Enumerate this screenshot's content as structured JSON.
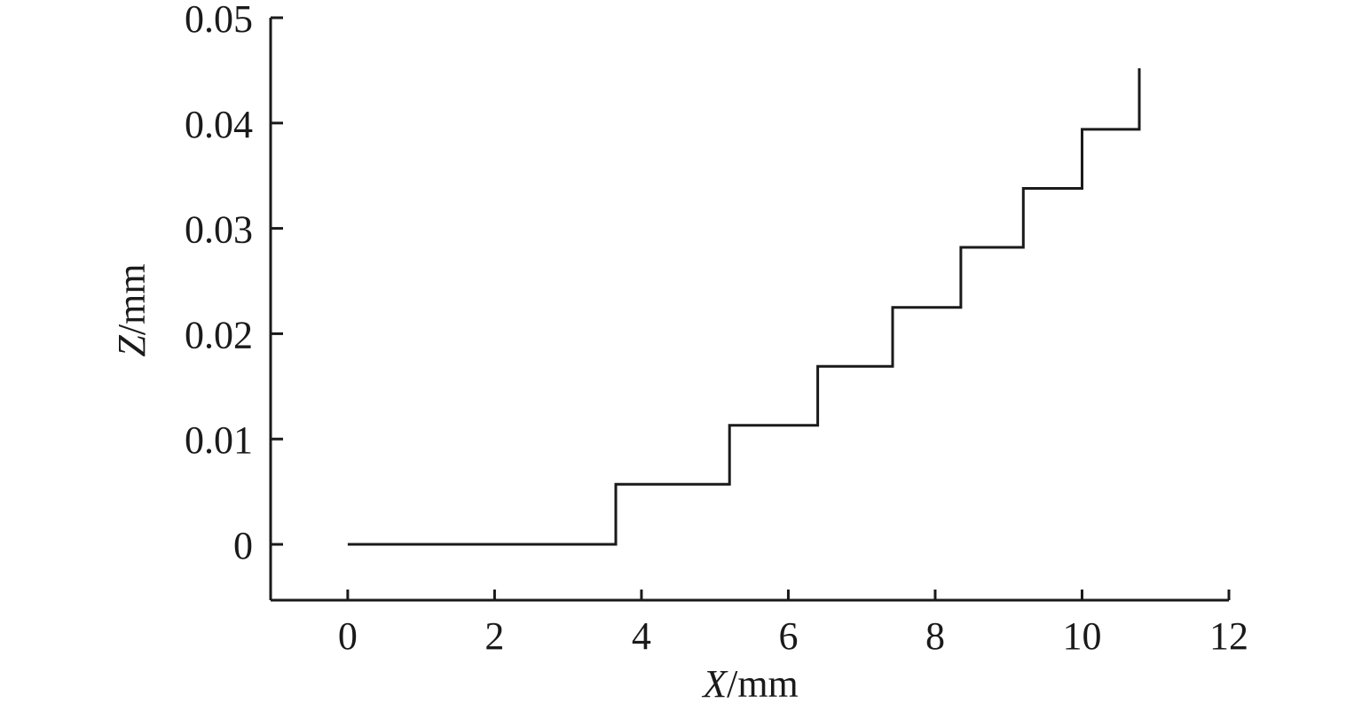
{
  "chart_data": {
    "type": "line",
    "style": "step",
    "title": "",
    "xlabel": {
      "var": "X",
      "unit": "/mm"
    },
    "ylabel": {
      "var": "Z",
      "unit": "/mm"
    },
    "xlim": [
      -1.05,
      12
    ],
    "ylim": [
      -0.0053,
      0.05
    ],
    "xticks": [
      0,
      2,
      4,
      6,
      8,
      10,
      12
    ],
    "xtick_labels": [
      "0",
      "2",
      "4",
      "6",
      "8",
      "10",
      "12"
    ],
    "yticks": [
      0,
      0.01,
      0.02,
      0.03,
      0.04,
      0.05
    ],
    "ytick_labels": [
      "0",
      "0.01",
      "0.02",
      "0.03",
      "0.04",
      "0.05"
    ],
    "grid": false,
    "legend": "none",
    "line_color": "#1a1a1a",
    "series": [
      {
        "x": [
          0,
          3.65,
          3.65,
          5.2,
          5.2,
          6.4,
          6.4,
          7.42,
          7.42,
          8.35,
          8.35,
          9.2,
          9.2,
          10.0,
          10.0,
          10.78,
          10.78
        ],
        "y": [
          0,
          0,
          0.0057,
          0.0057,
          0.0113,
          0.0113,
          0.0169,
          0.0169,
          0.0225,
          0.0225,
          0.0282,
          0.0282,
          0.0338,
          0.0338,
          0.0394,
          0.0394,
          0.0452
        ]
      }
    ]
  }
}
